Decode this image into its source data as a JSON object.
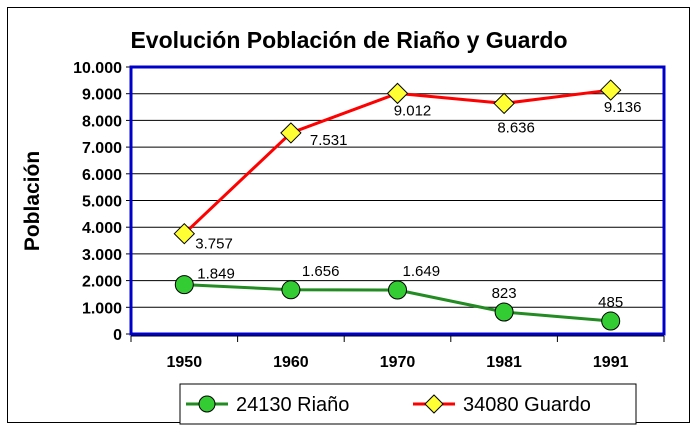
{
  "chart_data": {
    "type": "line",
    "title": "Evolución Población de Riaño y Guardo",
    "xlabel": "",
    "ylabel": "Población",
    "categories": [
      "1950",
      "1960",
      "1970",
      "1981",
      "1991"
    ],
    "ylim": [
      0,
      10000
    ],
    "yticks": [
      {
        "value": 0,
        "label": "0"
      },
      {
        "value": 1000,
        "label": "1.000"
      },
      {
        "value": 2000,
        "label": "2.000"
      },
      {
        "value": 3000,
        "label": "3.000"
      },
      {
        "value": 4000,
        "label": "4.000"
      },
      {
        "value": 5000,
        "label": "5.000"
      },
      {
        "value": 6000,
        "label": "6.000"
      },
      {
        "value": 7000,
        "label": "7.000"
      },
      {
        "value": 8000,
        "label": "8.000"
      },
      {
        "value": 9000,
        "label": "9.000"
      },
      {
        "value": 10000,
        "label": "10.000"
      }
    ],
    "grid": true,
    "legend_position": "bottom",
    "series": [
      {
        "name": "24130 Riaño",
        "values": [
          1849,
          1656,
          1649,
          823,
          485
        ],
        "labels": [
          "1.849",
          "1.656",
          "1.649",
          "823",
          "485"
        ],
        "line_color": "#228B22",
        "marker": "circle",
        "marker_color": "#33CC33"
      },
      {
        "name": "34080 Guardo",
        "values": [
          3757,
          7531,
          9012,
          8636,
          9136
        ],
        "labels": [
          "3.757",
          "7.531",
          "9.012",
          "8.636",
          "9.136"
        ],
        "line_color": "#FF0000",
        "marker": "diamond",
        "marker_color": "#FFFF33"
      }
    ],
    "colors": {
      "plot_border": "#0000CC",
      "grid": "#000000"
    }
  }
}
